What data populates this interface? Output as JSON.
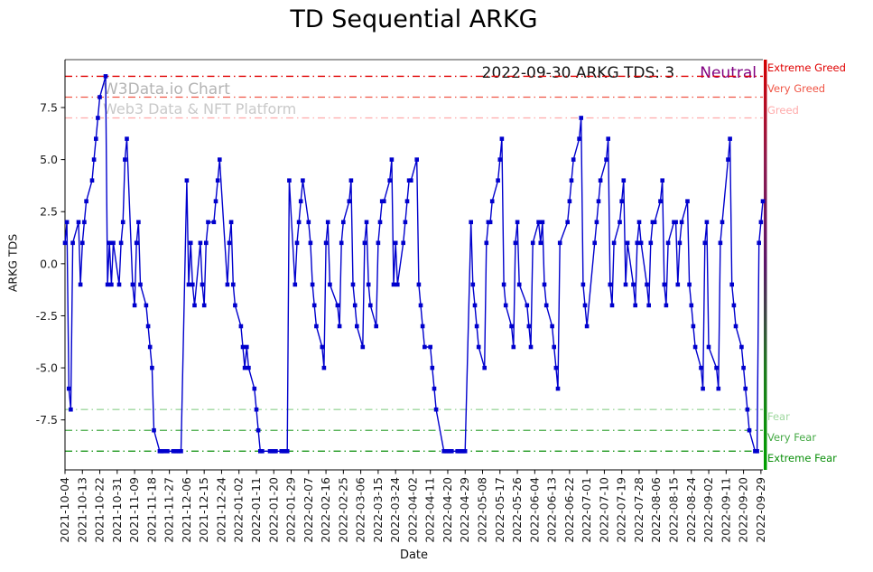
{
  "title": "TD Sequential ARKG",
  "annotation": {
    "date_text": "2022-09-30 ARKG TDS: 3",
    "sentiment": "Neutral",
    "sentiment_color": "#800080"
  },
  "watermark": {
    "line1": "W3Data.io Chart",
    "line2": "Web3 Data & NFT Platform"
  },
  "axes": {
    "xlabel": "Date",
    "ylabel": "ARKG TDS"
  },
  "sentiment_bar": {
    "colors": [
      "#d40000",
      "#8e1b4f",
      "#5b1569",
      "#1e7a1e",
      "#00a000"
    ]
  },
  "chart_data": {
    "type": "line",
    "title": "TD Sequential ARKG",
    "xlabel": "Date",
    "ylabel": "ARKG TDS",
    "series_name": "ARKG TDS",
    "line_color": "#0000cd",
    "marker": "square",
    "grid": false,
    "legend": "none",
    "x_start": "2021-10-04",
    "x_end": "2022-09-30",
    "ylim": [
      -9.9,
      9.8
    ],
    "ytick_values": [
      7.5,
      5.0,
      2.5,
      0.0,
      -2.5,
      -5.0,
      -7.5
    ],
    "xtick_labels": [
      "2021-10-04",
      "2021-10-13",
      "2021-10-22",
      "2021-10-31",
      "2021-11-09",
      "2021-11-18",
      "2021-11-27",
      "2021-12-06",
      "2021-12-15",
      "2021-12-24",
      "2022-01-02",
      "2022-01-11",
      "2022-01-20",
      "2022-01-29",
      "2022-02-07",
      "2022-02-16",
      "2022-02-25",
      "2022-03-06",
      "2022-03-15",
      "2022-03-24",
      "2022-04-02",
      "2022-04-11",
      "2022-04-20",
      "2022-04-29",
      "2022-05-08",
      "2022-05-17",
      "2022-05-26",
      "2022-06-04",
      "2022-06-13",
      "2022-06-22",
      "2022-07-01",
      "2022-07-10",
      "2022-07-19",
      "2022-07-28",
      "2022-08-06",
      "2022-08-15",
      "2022-08-24",
      "2022-09-02",
      "2022-09-11",
      "2022-09-20",
      "2022-09-29"
    ],
    "thresholds": [
      {
        "label": "Extreme Greed",
        "value": 9,
        "color": "#e00000"
      },
      {
        "label": "Very Greed",
        "value": 8,
        "color": "#f05545"
      },
      {
        "label": "Greed",
        "value": 7,
        "color": "#ffaaaa"
      },
      {
        "label": "Fear",
        "value": -7,
        "color": "#9fd89f"
      },
      {
        "label": "Very Fear",
        "value": -8,
        "color": "#44a944"
      },
      {
        "label": "Extreme Fear",
        "value": -9,
        "color": "#0a8f0a"
      }
    ],
    "points": [
      [
        "2021-10-04",
        1
      ],
      [
        "2021-10-05",
        2
      ],
      [
        "2021-10-06",
        -6
      ],
      [
        "2021-10-07",
        -7
      ],
      [
        "2021-10-08",
        1
      ],
      [
        "2021-10-11",
        2
      ],
      [
        "2021-10-12",
        -1
      ],
      [
        "2021-10-13",
        1
      ],
      [
        "2021-10-14",
        2
      ],
      [
        "2021-10-15",
        3
      ],
      [
        "2021-10-18",
        4
      ],
      [
        "2021-10-19",
        5
      ],
      [
        "2021-10-20",
        6
      ],
      [
        "2021-10-21",
        7
      ],
      [
        "2021-10-22",
        8
      ],
      [
        "2021-10-25",
        9
      ],
      [
        "2021-10-26",
        -1
      ],
      [
        "2021-10-27",
        1
      ],
      [
        "2021-10-28",
        -1
      ],
      [
        "2021-10-29",
        1
      ],
      [
        "2021-11-01",
        -1
      ],
      [
        "2021-11-02",
        1
      ],
      [
        "2021-11-03",
        2
      ],
      [
        "2021-11-04",
        5
      ],
      [
        "2021-11-05",
        6
      ],
      [
        "2021-11-08",
        -1
      ],
      [
        "2021-11-09",
        -2
      ],
      [
        "2021-11-10",
        1
      ],
      [
        "2021-11-11",
        2
      ],
      [
        "2021-11-12",
        -1
      ],
      [
        "2021-11-15",
        -2
      ],
      [
        "2021-11-16",
        -3
      ],
      [
        "2021-11-17",
        -4
      ],
      [
        "2021-11-18",
        -5
      ],
      [
        "2021-11-19",
        -8
      ],
      [
        "2021-11-22",
        -9
      ],
      [
        "2021-11-23",
        -9
      ],
      [
        "2021-11-24",
        -9
      ],
      [
        "2021-11-26",
        -9
      ],
      [
        "2021-11-29",
        -9
      ],
      [
        "2021-11-30",
        -9
      ],
      [
        "2021-12-01",
        -9
      ],
      [
        "2021-12-02",
        -9
      ],
      [
        "2021-12-03",
        -9
      ],
      [
        "2021-12-06",
        4
      ],
      [
        "2021-12-07",
        -1
      ],
      [
        "2021-12-08",
        1
      ],
      [
        "2021-12-09",
        -1
      ],
      [
        "2021-12-10",
        -2
      ],
      [
        "2021-12-13",
        1
      ],
      [
        "2021-12-14",
        -1
      ],
      [
        "2021-12-15",
        -2
      ],
      [
        "2021-12-16",
        1
      ],
      [
        "2021-12-17",
        2
      ],
      [
        "2021-12-20",
        2
      ],
      [
        "2021-12-21",
        3
      ],
      [
        "2021-12-22",
        4
      ],
      [
        "2021-12-23",
        5
      ],
      [
        "2021-12-27",
        -1
      ],
      [
        "2021-12-28",
        1
      ],
      [
        "2021-12-29",
        2
      ],
      [
        "2021-12-30",
        -1
      ],
      [
        "2021-12-31",
        -2
      ],
      [
        "2022-01-03",
        -3
      ],
      [
        "2022-01-04",
        -4
      ],
      [
        "2022-01-05",
        -5
      ],
      [
        "2022-01-06",
        -4
      ],
      [
        "2022-01-07",
        -5
      ],
      [
        "2022-01-10",
        -6
      ],
      [
        "2022-01-11",
        -7
      ],
      [
        "2022-01-12",
        -8
      ],
      [
        "2022-01-13",
        -9
      ],
      [
        "2022-01-14",
        -9
      ],
      [
        "2022-01-18",
        -9
      ],
      [
        "2022-01-19",
        -9
      ],
      [
        "2022-01-20",
        -9
      ],
      [
        "2022-01-21",
        -9
      ],
      [
        "2022-01-24",
        -9
      ],
      [
        "2022-01-25",
        -9
      ],
      [
        "2022-01-26",
        -9
      ],
      [
        "2022-01-27",
        -9
      ],
      [
        "2022-01-28",
        4
      ],
      [
        "2022-01-31",
        -1
      ],
      [
        "2022-02-01",
        1
      ],
      [
        "2022-02-02",
        2
      ],
      [
        "2022-02-03",
        3
      ],
      [
        "2022-02-04",
        4
      ],
      [
        "2022-02-07",
        2
      ],
      [
        "2022-02-08",
        1
      ],
      [
        "2022-02-09",
        -1
      ],
      [
        "2022-02-10",
        -2
      ],
      [
        "2022-02-11",
        -3
      ],
      [
        "2022-02-14",
        -4
      ],
      [
        "2022-02-15",
        -5
      ],
      [
        "2022-02-16",
        1
      ],
      [
        "2022-02-17",
        2
      ],
      [
        "2022-02-18",
        -1
      ],
      [
        "2022-02-22",
        -2
      ],
      [
        "2022-02-23",
        -3
      ],
      [
        "2022-02-24",
        1
      ],
      [
        "2022-02-25",
        2
      ],
      [
        "2022-02-28",
        3
      ],
      [
        "2022-03-01",
        4
      ],
      [
        "2022-03-02",
        -1
      ],
      [
        "2022-03-03",
        -2
      ],
      [
        "2022-03-04",
        -3
      ],
      [
        "2022-03-07",
        -4
      ],
      [
        "2022-03-08",
        1
      ],
      [
        "2022-03-09",
        2
      ],
      [
        "2022-03-10",
        -1
      ],
      [
        "2022-03-11",
        -2
      ],
      [
        "2022-03-14",
        -3
      ],
      [
        "2022-03-15",
        1
      ],
      [
        "2022-03-16",
        2
      ],
      [
        "2022-03-17",
        3
      ],
      [
        "2022-03-18",
        3
      ],
      [
        "2022-03-21",
        4
      ],
      [
        "2022-03-22",
        5
      ],
      [
        "2022-03-23",
        -1
      ],
      [
        "2022-03-24",
        1
      ],
      [
        "2022-03-25",
        -1
      ],
      [
        "2022-03-28",
        1
      ],
      [
        "2022-03-29",
        2
      ],
      [
        "2022-03-30",
        3
      ],
      [
        "2022-03-31",
        4
      ],
      [
        "2022-04-01",
        4
      ],
      [
        "2022-04-04",
        5
      ],
      [
        "2022-04-05",
        -1
      ],
      [
        "2022-04-06",
        -2
      ],
      [
        "2022-04-07",
        -3
      ],
      [
        "2022-04-08",
        -4
      ],
      [
        "2022-04-11",
        -4
      ],
      [
        "2022-04-12",
        -5
      ],
      [
        "2022-04-13",
        -6
      ],
      [
        "2022-04-14",
        -7
      ],
      [
        "2022-04-18",
        -9
      ],
      [
        "2022-04-19",
        -9
      ],
      [
        "2022-04-20",
        -9
      ],
      [
        "2022-04-21",
        -9
      ],
      [
        "2022-04-22",
        -9
      ],
      [
        "2022-04-25",
        -9
      ],
      [
        "2022-04-26",
        -9
      ],
      [
        "2022-04-27",
        -9
      ],
      [
        "2022-04-28",
        -9
      ],
      [
        "2022-04-29",
        -9
      ],
      [
        "2022-05-02",
        2
      ],
      [
        "2022-05-03",
        -1
      ],
      [
        "2022-05-04",
        -2
      ],
      [
        "2022-05-05",
        -3
      ],
      [
        "2022-05-06",
        -4
      ],
      [
        "2022-05-09",
        -5
      ],
      [
        "2022-05-10",
        1
      ],
      [
        "2022-05-11",
        2
      ],
      [
        "2022-05-12",
        2
      ],
      [
        "2022-05-13",
        3
      ],
      [
        "2022-05-16",
        4
      ],
      [
        "2022-05-17",
        5
      ],
      [
        "2022-05-18",
        6
      ],
      [
        "2022-05-19",
        -1
      ],
      [
        "2022-05-20",
        -2
      ],
      [
        "2022-05-23",
        -3
      ],
      [
        "2022-05-24",
        -4
      ],
      [
        "2022-05-25",
        1
      ],
      [
        "2022-05-26",
        2
      ],
      [
        "2022-05-27",
        -1
      ],
      [
        "2022-05-31",
        -2
      ],
      [
        "2022-06-01",
        -3
      ],
      [
        "2022-06-02",
        -4
      ],
      [
        "2022-06-03",
        1
      ],
      [
        "2022-06-06",
        2
      ],
      [
        "2022-06-07",
        1
      ],
      [
        "2022-06-08",
        2
      ],
      [
        "2022-06-09",
        -1
      ],
      [
        "2022-06-10",
        -2
      ],
      [
        "2022-06-13",
        -3
      ],
      [
        "2022-06-14",
        -4
      ],
      [
        "2022-06-15",
        -5
      ],
      [
        "2022-06-16",
        -6
      ],
      [
        "2022-06-17",
        1
      ],
      [
        "2022-06-21",
        2
      ],
      [
        "2022-06-22",
        3
      ],
      [
        "2022-06-23",
        4
      ],
      [
        "2022-06-24",
        5
      ],
      [
        "2022-06-27",
        6
      ],
      [
        "2022-06-28",
        7
      ],
      [
        "2022-06-29",
        -1
      ],
      [
        "2022-06-30",
        -2
      ],
      [
        "2022-07-01",
        -3
      ],
      [
        "2022-07-05",
        1
      ],
      [
        "2022-07-06",
        2
      ],
      [
        "2022-07-07",
        3
      ],
      [
        "2022-07-08",
        4
      ],
      [
        "2022-07-11",
        5
      ],
      [
        "2022-07-12",
        6
      ],
      [
        "2022-07-13",
        -1
      ],
      [
        "2022-07-14",
        -2
      ],
      [
        "2022-07-15",
        1
      ],
      [
        "2022-07-18",
        2
      ],
      [
        "2022-07-19",
        3
      ],
      [
        "2022-07-20",
        4
      ],
      [
        "2022-07-21",
        -1
      ],
      [
        "2022-07-22",
        1
      ],
      [
        "2022-07-25",
        -1
      ],
      [
        "2022-07-26",
        -2
      ],
      [
        "2022-07-27",
        1
      ],
      [
        "2022-07-28",
        2
      ],
      [
        "2022-07-29",
        1
      ],
      [
        "2022-08-01",
        -1
      ],
      [
        "2022-08-02",
        -2
      ],
      [
        "2022-08-03",
        1
      ],
      [
        "2022-08-04",
        2
      ],
      [
        "2022-08-05",
        2
      ],
      [
        "2022-08-08",
        3
      ],
      [
        "2022-08-09",
        4
      ],
      [
        "2022-08-10",
        -1
      ],
      [
        "2022-08-11",
        -2
      ],
      [
        "2022-08-12",
        1
      ],
      [
        "2022-08-15",
        2
      ],
      [
        "2022-08-16",
        2
      ],
      [
        "2022-08-17",
        -1
      ],
      [
        "2022-08-18",
        1
      ],
      [
        "2022-08-19",
        2
      ],
      [
        "2022-08-22",
        3
      ],
      [
        "2022-08-23",
        -1
      ],
      [
        "2022-08-24",
        -2
      ],
      [
        "2022-08-25",
        -3
      ],
      [
        "2022-08-26",
        -4
      ],
      [
        "2022-08-29",
        -5
      ],
      [
        "2022-08-30",
        -6
      ],
      [
        "2022-08-31",
        1
      ],
      [
        "2022-09-01",
        2
      ],
      [
        "2022-09-02",
        -4
      ],
      [
        "2022-09-06",
        -5
      ],
      [
        "2022-09-07",
        -6
      ],
      [
        "2022-09-08",
        1
      ],
      [
        "2022-09-09",
        2
      ],
      [
        "2022-09-12",
        5
      ],
      [
        "2022-09-13",
        6
      ],
      [
        "2022-09-14",
        -1
      ],
      [
        "2022-09-15",
        -2
      ],
      [
        "2022-09-16",
        -3
      ],
      [
        "2022-09-19",
        -4
      ],
      [
        "2022-09-20",
        -5
      ],
      [
        "2022-09-21",
        -6
      ],
      [
        "2022-09-22",
        -7
      ],
      [
        "2022-09-23",
        -8
      ],
      [
        "2022-09-26",
        -9
      ],
      [
        "2022-09-27",
        -9
      ],
      [
        "2022-09-28",
        1
      ],
      [
        "2022-09-29",
        2
      ],
      [
        "2022-09-30",
        3
      ]
    ]
  }
}
